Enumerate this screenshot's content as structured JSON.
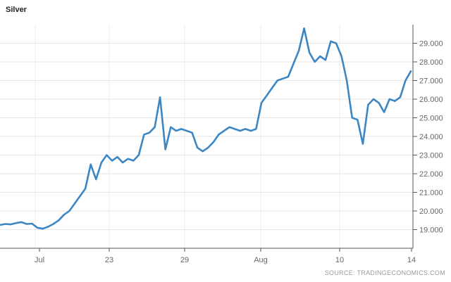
{
  "chart_data": {
    "type": "line",
    "title": "Silver",
    "source": "SOURCE: TRADINGECONOMICS.COM",
    "xlabel": "",
    "ylabel": "",
    "x_ticks": [
      "Jul",
      "23",
      "29",
      "Aug",
      "10",
      "14"
    ],
    "y_ticks": [
      "19.000",
      "20.000",
      "21.000",
      "22.000",
      "23.000",
      "24.000",
      "25.000",
      "26.000",
      "27.000",
      "28.000",
      "29.000"
    ],
    "ylim": [
      18.0,
      30.0
    ],
    "grid": true,
    "line_color": "#3b86c3",
    "series": [
      {
        "values": [
          19.25,
          19.3,
          19.28,
          19.35,
          19.4,
          19.3,
          19.32,
          19.1,
          19.05,
          19.15,
          19.3,
          19.5,
          19.8,
          20.0,
          20.4,
          20.8,
          21.2,
          22.5,
          21.7,
          22.6,
          23.0,
          22.7,
          22.9,
          22.6,
          22.8,
          22.7,
          23.0,
          24.1,
          24.2,
          24.5,
          26.1,
          23.3,
          24.5,
          24.3,
          24.4,
          24.3,
          24.2,
          23.4,
          23.2,
          23.4,
          23.7,
          24.1,
          24.3,
          24.5,
          24.4,
          24.3,
          24.4,
          24.3,
          24.4,
          25.8,
          26.2,
          26.6,
          27.0,
          27.1,
          27.2,
          27.9,
          28.6,
          29.8,
          28.5,
          28.0,
          28.3,
          28.1,
          29.1,
          29.0,
          28.3,
          27.0,
          25.0,
          24.9,
          23.6,
          25.7,
          26.0,
          25.8,
          25.3,
          26.0,
          25.9,
          26.1,
          27.0,
          27.5
        ]
      }
    ]
  }
}
